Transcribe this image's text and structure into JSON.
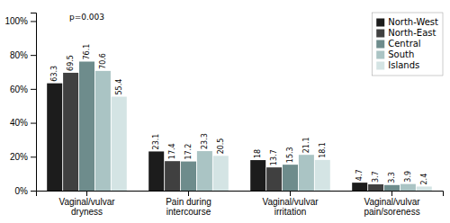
{
  "chart_data": {
    "type": "bar",
    "categories": [
      "Vaginal/vulvar\ndryness",
      "Pain during\nintercourse",
      "Vaginal/vulvar\nirritation",
      "Vaginal/vulvar\npain/soreness"
    ],
    "series": [
      {
        "name": "North-West",
        "color": "#1c1c1c",
        "values": [
          63.3,
          23.1,
          18.0,
          4.7
        ]
      },
      {
        "name": "North-East",
        "color": "#404040",
        "values": [
          69.5,
          17.4,
          13.7,
          3.7
        ]
      },
      {
        "name": "Central",
        "color": "#6e8c8c",
        "values": [
          76.1,
          17.2,
          15.3,
          3.3
        ]
      },
      {
        "name": "South",
        "color": "#aac4c4",
        "values": [
          70.6,
          23.3,
          21.1,
          3.9
        ]
      },
      {
        "name": "Islands",
        "color": "#d4e4e4",
        "values": [
          55.4,
          20.5,
          18.1,
          2.4
        ]
      }
    ],
    "ylim": [
      0,
      105
    ],
    "yticks": [
      {
        "value": 0,
        "label": "0%"
      },
      {
        "value": 20,
        "label": "20%"
      },
      {
        "value": 40,
        "label": "40%"
      },
      {
        "value": 60,
        "label": "60%"
      },
      {
        "value": 80,
        "label": "80%"
      },
      {
        "value": 100,
        "label": "100%"
      }
    ],
    "annotation": "p=0.003",
    "data_labels": true,
    "legend": "upper right",
    "grid": false
  }
}
